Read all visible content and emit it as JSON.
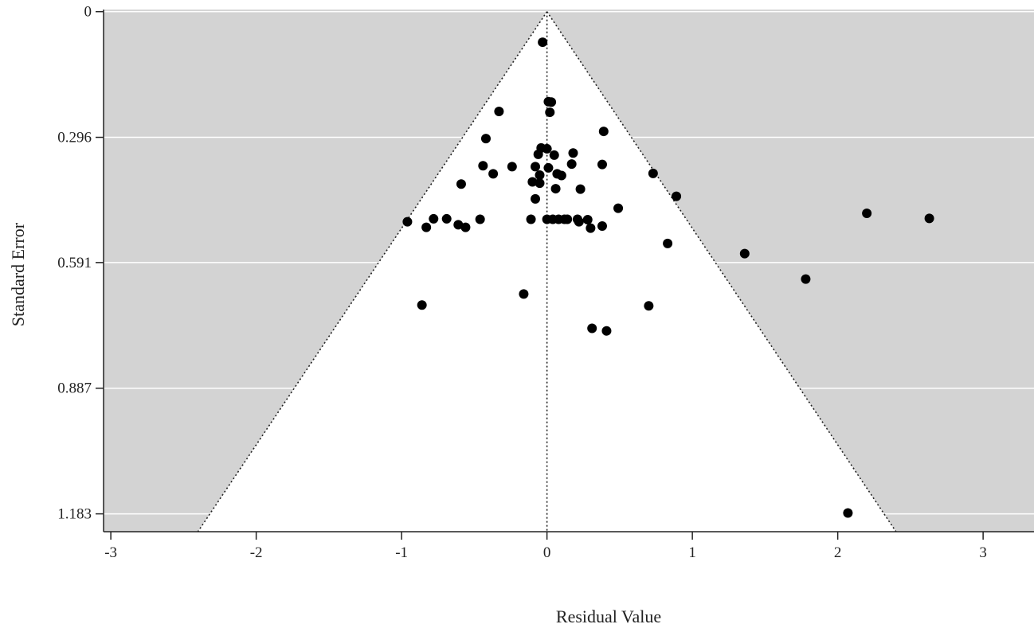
{
  "chart_data": {
    "type": "scatter",
    "title": "",
    "xlabel": "Residual Value",
    "ylabel": "Standard Error",
    "xlim": [
      -3.05,
      3.35
    ],
    "ylim": [
      1.225,
      -0.005
    ],
    "x_ticks": [
      -3,
      -2,
      -1,
      0,
      1,
      2,
      3
    ],
    "x_tick_labels": [
      "-3",
      "-2",
      "-1",
      "0",
      "1",
      "2",
      "3"
    ],
    "y_ticks": [
      0,
      0.296,
      0.591,
      0.887,
      1.183
    ],
    "y_tick_labels": [
      "0",
      "0.296",
      "0.591",
      "0.887",
      "1.183"
    ],
    "y_axis_reversed": true,
    "grid": "horizontal",
    "background_outside_funnel": "#d3d3d3",
    "funnel_fill": "#ffffff",
    "point_color": "#000000",
    "funnel": {
      "center": 0,
      "apex_se": 0,
      "half_width_per_se": 1.96,
      "line_style": "dotted"
    },
    "points": [
      {
        "x": -0.03,
        "y": 0.072
      },
      {
        "x": 0.01,
        "y": 0.212
      },
      {
        "x": 0.03,
        "y": 0.213
      },
      {
        "x": 0.02,
        "y": 0.237
      },
      {
        "x": -0.33,
        "y": 0.235
      },
      {
        "x": -0.42,
        "y": 0.299
      },
      {
        "x": 0.39,
        "y": 0.282
      },
      {
        "x": -0.04,
        "y": 0.321
      },
      {
        "x": 0.0,
        "y": 0.323
      },
      {
        "x": -0.06,
        "y": 0.336
      },
      {
        "x": 0.05,
        "y": 0.338
      },
      {
        "x": 0.18,
        "y": 0.333
      },
      {
        "x": -0.44,
        "y": 0.363
      },
      {
        "x": -0.24,
        "y": 0.365
      },
      {
        "x": -0.08,
        "y": 0.365
      },
      {
        "x": 0.01,
        "y": 0.368
      },
      {
        "x": 0.17,
        "y": 0.359
      },
      {
        "x": 0.38,
        "y": 0.36
      },
      {
        "x": -0.37,
        "y": 0.382
      },
      {
        "x": -0.05,
        "y": 0.385
      },
      {
        "x": 0.07,
        "y": 0.382
      },
      {
        "x": 0.1,
        "y": 0.386
      },
      {
        "x": 0.73,
        "y": 0.381
      },
      {
        "x": -0.59,
        "y": 0.406
      },
      {
        "x": -0.1,
        "y": 0.401
      },
      {
        "x": -0.05,
        "y": 0.404
      },
      {
        "x": 0.06,
        "y": 0.417
      },
      {
        "x": 0.23,
        "y": 0.418
      },
      {
        "x": -0.08,
        "y": 0.441
      },
      {
        "x": 0.89,
        "y": 0.435
      },
      {
        "x": 0.49,
        "y": 0.463
      },
      {
        "x": -0.96,
        "y": 0.495
      },
      {
        "x": -0.78,
        "y": 0.488
      },
      {
        "x": -0.69,
        "y": 0.488
      },
      {
        "x": -0.46,
        "y": 0.489
      },
      {
        "x": -0.11,
        "y": 0.489
      },
      {
        "x": 0.0,
        "y": 0.489
      },
      {
        "x": 0.04,
        "y": 0.489
      },
      {
        "x": 0.08,
        "y": 0.489
      },
      {
        "x": 0.12,
        "y": 0.489
      },
      {
        "x": 0.14,
        "y": 0.489
      },
      {
        "x": 0.21,
        "y": 0.489
      },
      {
        "x": 0.22,
        "y": 0.495
      },
      {
        "x": 0.28,
        "y": 0.49
      },
      {
        "x": -0.83,
        "y": 0.508
      },
      {
        "x": -0.61,
        "y": 0.502
      },
      {
        "x": -0.56,
        "y": 0.508
      },
      {
        "x": 0.3,
        "y": 0.51
      },
      {
        "x": 0.38,
        "y": 0.505
      },
      {
        "x": 2.2,
        "y": 0.475
      },
      {
        "x": 2.63,
        "y": 0.487
      },
      {
        "x": 0.83,
        "y": 0.546
      },
      {
        "x": 1.36,
        "y": 0.57
      },
      {
        "x": 1.78,
        "y": 0.63
      },
      {
        "x": -0.16,
        "y": 0.665
      },
      {
        "x": -0.86,
        "y": 0.691
      },
      {
        "x": 0.7,
        "y": 0.693
      },
      {
        "x": 0.31,
        "y": 0.746
      },
      {
        "x": 0.41,
        "y": 0.752
      },
      {
        "x": 2.07,
        "y": 1.181
      }
    ]
  }
}
